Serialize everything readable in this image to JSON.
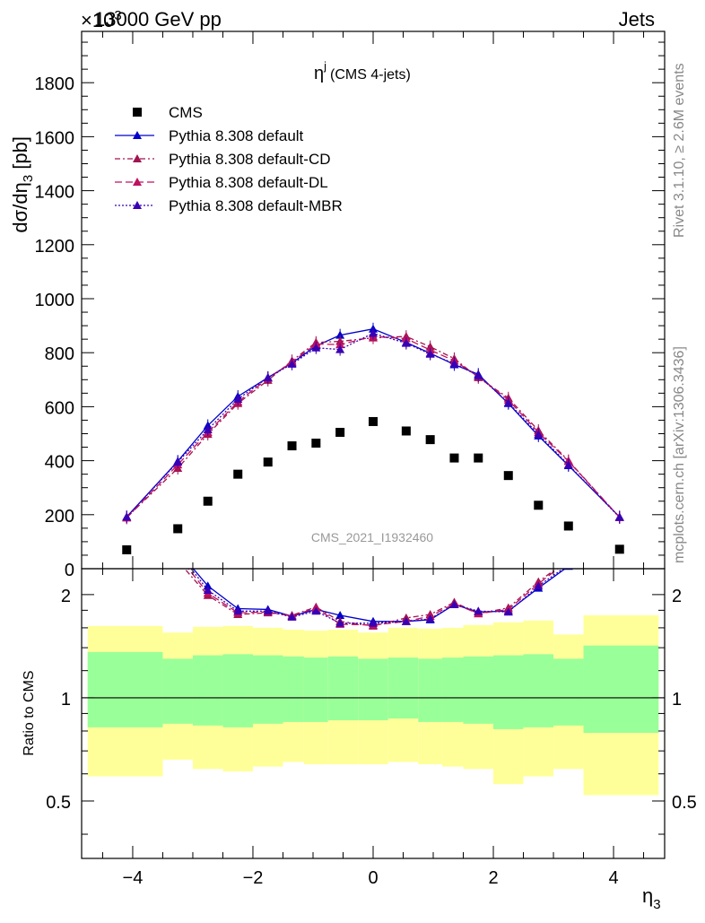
{
  "header": {
    "energy_label": "13000 GeV pp",
    "category_label": "Jets",
    "exponent_label": "×10",
    "exponent_sup": "3"
  },
  "side_labels": {
    "rivet": "Rivet 3.1.10, ≥ 2.6M events",
    "mcplots": "mcplots.cern.ch [arXiv:1306.3436]"
  },
  "watermark": "CMS_2021_I1932460",
  "chart_data": [
    {
      "type": "scatter",
      "title": "η^j (CMS 4-jets)",
      "title_main": "η",
      "title_sup": "j",
      "title_rest": "(CMS 4-jets)",
      "ylabel": "dσ/dη3 [pb]",
      "ylabel_main": "dσ/dη",
      "ylabel_sub": "3",
      "ylabel_unit": " [pb]",
      "xlim": [
        -4.85,
        4.85
      ],
      "ylim": [
        0,
        1990
      ],
      "yticks": [
        0,
        200,
        400,
        600,
        800,
        1000,
        1200,
        1400,
        1600,
        1800
      ],
      "legend_position": "top-left",
      "series": [
        {
          "name": "CMS",
          "color": "#000000",
          "marker": "square",
          "x": [
            -4.1,
            -3.25,
            -2.75,
            -2.25,
            -1.75,
            -1.35,
            -0.95,
            -0.55,
            0.0,
            0.55,
            0.95,
            1.35,
            1.75,
            2.25,
            2.75,
            3.25,
            4.1
          ],
          "values": [
            70,
            148,
            250,
            350,
            395,
            455,
            465,
            505,
            545,
            510,
            478,
            410,
            410,
            345,
            235,
            158,
            72
          ]
        },
        {
          "name": "Pythia 8.308 default",
          "color": "#0000cc",
          "marker": "triangle",
          "dash": "",
          "x": [
            -4.1,
            -3.25,
            -2.75,
            -2.25,
            -1.75,
            -1.35,
            -0.95,
            -0.55,
            0.0,
            0.55,
            0.95,
            1.35,
            1.75,
            2.25,
            2.75,
            3.25,
            4.1
          ],
          "values": [
            192,
            398,
            530,
            638,
            708,
            762,
            825,
            865,
            888,
            838,
            798,
            756,
            720,
            612,
            492,
            382,
            192
          ]
        },
        {
          "name": "Pythia 8.308 default-CD",
          "color": "#a0144f",
          "marker": "triangle",
          "dash": "6,3,2,3",
          "x": [
            -4.1,
            -3.25,
            -2.75,
            -2.25,
            -1.75,
            -1.35,
            -0.95,
            -0.55,
            0.0,
            0.55,
            0.95,
            1.35,
            1.75,
            2.25,
            2.75,
            3.25,
            4.1
          ],
          "values": [
            190,
            372,
            498,
            612,
            698,
            770,
            838,
            842,
            855,
            860,
            822,
            778,
            708,
            632,
            512,
            400,
            190
          ]
        },
        {
          "name": "Pythia 8.308 default-DL",
          "color": "#c01060",
          "marker": "triangle",
          "dash": "8,4",
          "x": [
            -4.1,
            -3.25,
            -2.75,
            -2.25,
            -1.75,
            -1.35,
            -0.95,
            -0.55,
            0.0,
            0.55,
            0.95,
            1.35,
            1.75,
            2.25,
            2.75,
            3.25,
            4.1
          ],
          "values": [
            188,
            385,
            505,
            618,
            705,
            765,
            832,
            830,
            860,
            852,
            810,
            770,
            712,
            625,
            505,
            398,
            190
          ]
        },
        {
          "name": "Pythia 8.308 default-MBR",
          "color": "#3a00b4",
          "marker": "triangle",
          "dash": "2,2",
          "x": [
            -4.1,
            -3.25,
            -2.75,
            -2.25,
            -1.75,
            -1.35,
            -0.95,
            -0.55,
            0.0,
            0.55,
            0.95,
            1.35,
            1.75,
            2.25,
            2.75,
            3.25,
            4.1
          ],
          "values": [
            192,
            395,
            515,
            628,
            708,
            758,
            818,
            812,
            872,
            835,
            795,
            760,
            715,
            615,
            498,
            385,
            190
          ]
        }
      ]
    },
    {
      "type": "line",
      "ylabel": "Ratio to CMS",
      "xlabel": "η3",
      "xlabel_main": "η",
      "xlabel_sub": "3",
      "xlim": [
        -4.85,
        4.85
      ],
      "ylim": [
        0.34,
        2.38
      ],
      "xticks": [
        -4,
        -2,
        0,
        2,
        4
      ],
      "yticks": [
        0.5,
        1,
        2
      ],
      "bands": {
        "edges": [
          -4.75,
          -3.5,
          -3.0,
          -2.5,
          -2.0,
          -1.5,
          -1.15,
          -0.75,
          -0.25,
          0.25,
          0.75,
          1.15,
          1.5,
          2.0,
          2.5,
          3.0,
          3.5,
          4.75
        ],
        "inner_color": "#99ff99",
        "outer_color": "#ffff99",
        "inner_low": [
          0.82,
          0.84,
          0.83,
          0.82,
          0.84,
          0.85,
          0.85,
          0.86,
          0.86,
          0.87,
          0.85,
          0.85,
          0.84,
          0.81,
          0.82,
          0.83,
          0.79
        ],
        "inner_high": [
          1.36,
          1.3,
          1.33,
          1.34,
          1.33,
          1.32,
          1.31,
          1.32,
          1.3,
          1.31,
          1.3,
          1.31,
          1.32,
          1.33,
          1.34,
          1.3,
          1.42
        ],
        "outer_low": [
          0.59,
          0.66,
          0.62,
          0.61,
          0.63,
          0.65,
          0.64,
          0.64,
          0.64,
          0.65,
          0.64,
          0.63,
          0.62,
          0.56,
          0.59,
          0.62,
          0.52
        ],
        "outer_high": [
          1.62,
          1.55,
          1.61,
          1.62,
          1.6,
          1.58,
          1.57,
          1.58,
          1.55,
          1.6,
          1.59,
          1.6,
          1.63,
          1.66,
          1.68,
          1.53,
          1.74
        ]
      },
      "series": [
        {
          "name": "Pythia 8.308 default",
          "color": "#0000cc",
          "dash": "",
          "x": [
            -3.25,
            -2.75,
            -2.25,
            -1.75,
            -1.35,
            -0.95,
            -0.55,
            0.0,
            0.55,
            0.95,
            1.35,
            1.75,
            2.25,
            2.75,
            3.25
          ],
          "values": [
            2.69,
            2.12,
            1.82,
            1.81,
            1.73,
            1.81,
            1.74,
            1.67,
            1.67,
            1.69,
            1.87,
            1.78,
            1.79,
            2.09,
            2.42
          ]
        },
        {
          "name": "Pythia 8.308 default-CD",
          "color": "#a0144f",
          "dash": "6,3,2,3",
          "x": [
            -3.25,
            -2.75,
            -2.25,
            -1.75,
            -1.35,
            -0.95,
            -0.55,
            0.0,
            0.55,
            0.95,
            1.35,
            1.75,
            2.25,
            2.75,
            3.25
          ],
          "values": [
            2.51,
            1.99,
            1.75,
            1.77,
            1.74,
            1.84,
            1.67,
            1.62,
            1.71,
            1.75,
            1.9,
            1.76,
            1.83,
            2.18,
            2.53
          ]
        },
        {
          "name": "Pythia 8.308 default-DL",
          "color": "#c01060",
          "dash": "8,4",
          "x": [
            -3.25,
            -2.75,
            -2.25,
            -1.75,
            -1.35,
            -0.95,
            -0.55,
            0.0,
            0.55,
            0.95,
            1.35,
            1.75,
            2.25,
            2.75,
            3.25
          ],
          "values": [
            2.6,
            2.02,
            1.77,
            1.78,
            1.73,
            1.83,
            1.64,
            1.63,
            1.67,
            1.73,
            1.88,
            1.76,
            1.81,
            2.15,
            2.52
          ]
        },
        {
          "name": "Pythia 8.308 default-MBR",
          "color": "#3a00b4",
          "dash": "2,2",
          "x": [
            -3.25,
            -2.75,
            -2.25,
            -1.75,
            -1.35,
            -0.95,
            -0.55,
            0.0,
            0.55,
            0.95,
            1.35,
            1.75,
            2.25,
            2.75,
            3.25
          ],
          "values": [
            2.67,
            2.06,
            1.79,
            1.79,
            1.72,
            1.79,
            1.65,
            1.65,
            1.67,
            1.7,
            1.87,
            1.79,
            1.78,
            2.12,
            2.44
          ]
        }
      ]
    }
  ]
}
